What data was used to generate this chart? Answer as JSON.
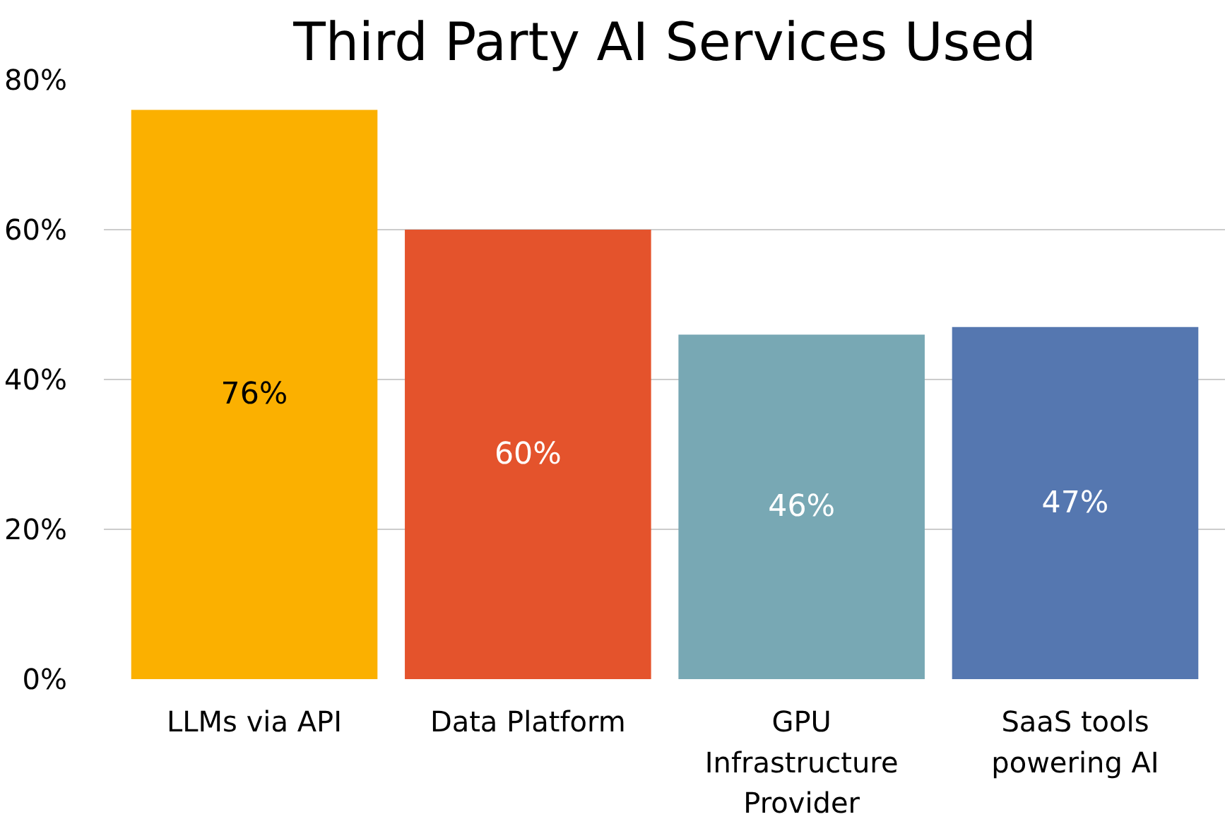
{
  "chart_data": {
    "type": "bar",
    "title": "Third Party AI Services Used",
    "categories": [
      "LLMs via API",
      "Data Platform",
      "GPU Infrastructure Provider",
      "SaaS tools powering AI"
    ],
    "values": [
      76,
      60,
      46,
      47
    ],
    "colors": [
      "#fbb000",
      "#e4532c",
      "#78a8b4",
      "#5577b0"
    ],
    "value_labels": [
      "76%",
      "60%",
      "46%",
      "47%"
    ],
    "ylim": [
      0,
      80
    ],
    "yticks": [
      {
        "value": 0,
        "label": "0%"
      },
      {
        "value": 20,
        "label": "20%"
      },
      {
        "value": 40,
        "label": "40%"
      },
      {
        "value": 60,
        "label": "60%"
      },
      {
        "value": 80,
        "label": "80%"
      }
    ],
    "grid": "y"
  }
}
